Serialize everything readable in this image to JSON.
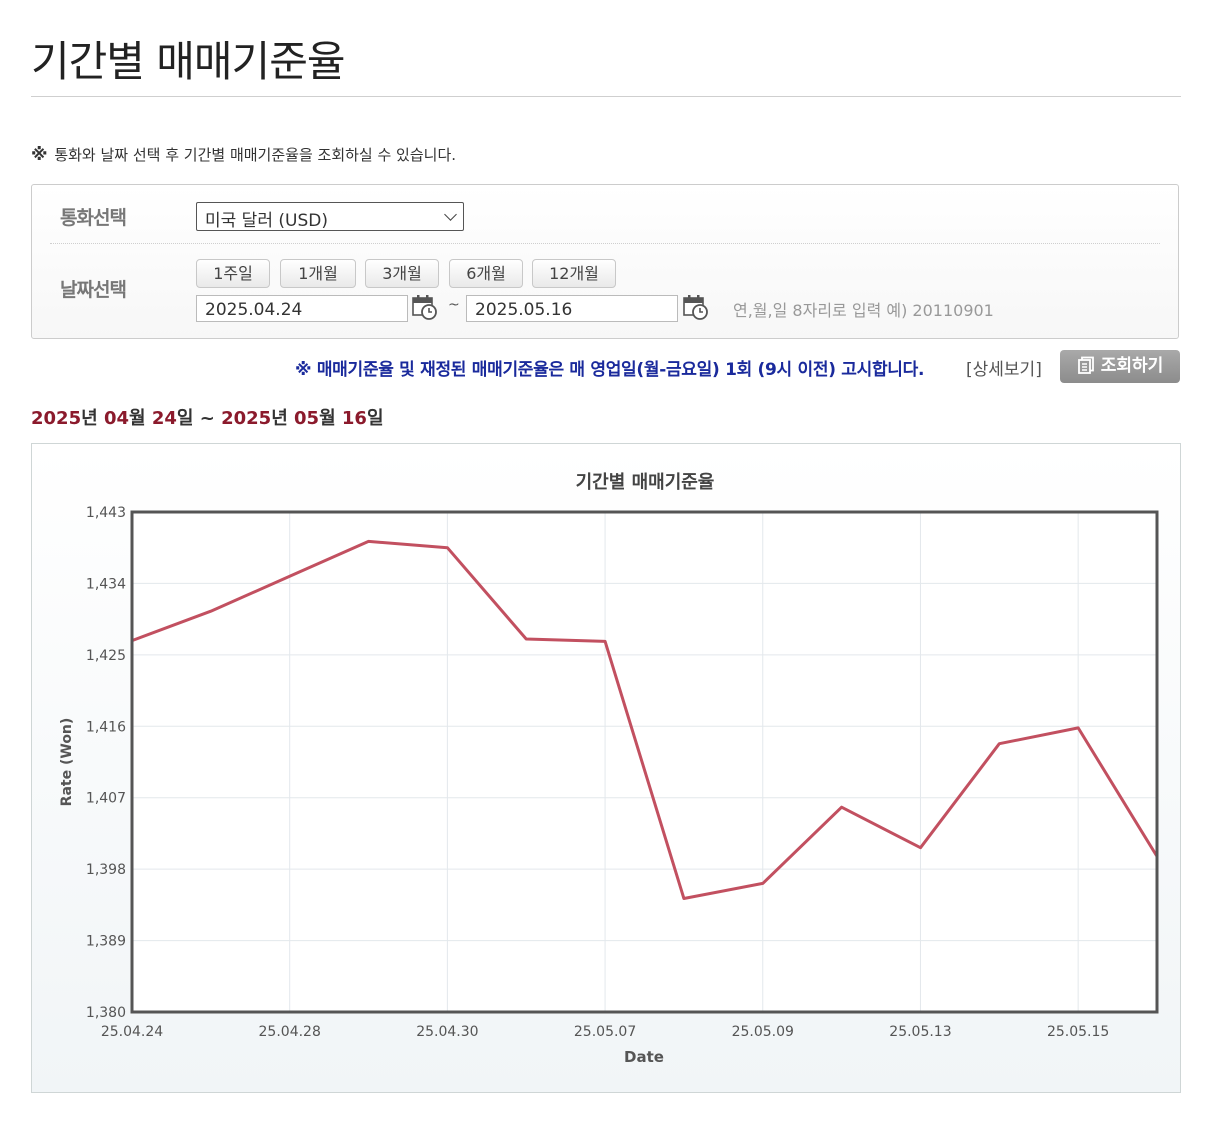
{
  "page": {
    "title": "기간별 매매기준율",
    "notice_mark": "※",
    "notice": "통화와 날짜 선택 후 기간별 매매기준율을 조회하실 수 있습니다."
  },
  "form": {
    "currency_label": "통화선택",
    "currency_value": "미국 달러 (USD)",
    "date_label": "날짜선택",
    "period_buttons": [
      "1주일",
      "1개월",
      "3개월",
      "6개월",
      "12개월"
    ],
    "start_date": "2025.04.24",
    "tilde": "~",
    "end_date": "2025.05.16",
    "hint": "연,월,일 8자리로 입력 예) 20110901"
  },
  "info": {
    "text": "※ 매매기준율 및 재정된 매매기준율은 매 영업일(월-금요일) 1회 (9시 이전) 고시합니다.",
    "detail_link": "[상세보기]",
    "query_button": "조회하기"
  },
  "range": {
    "y1": "2025",
    "u_year1": "년 ",
    "m1": "04",
    "u_month1": "월 ",
    "d1": "24",
    "u_day1": "일",
    "sep": " ~ ",
    "y2": "2025",
    "u_year2": "년 ",
    "m2": "05",
    "u_month2": "월 ",
    "d2": "16",
    "u_day2": "일"
  },
  "chart_data": {
    "type": "line",
    "title": "기간별 매매기준율",
    "xlabel": "Date",
    "ylabel": "Rate (Won)",
    "ylim": [
      1380,
      1443
    ],
    "yticks": [
      "1,380",
      "1,389",
      "1,398",
      "1,407",
      "1,416",
      "1,425",
      "1,434",
      "1,443"
    ],
    "xticks": [
      "25.04.24",
      "25.04.28",
      "25.04.30",
      "25.05.07",
      "25.05.09",
      "25.05.13",
      "25.05.15"
    ],
    "grid": true,
    "line_color": "#c25060",
    "points": [
      {
        "date": "25.04.24",
        "value": 1426.8
      },
      {
        "date": "25.04.25",
        "value": 1430.5
      },
      {
        "date": "25.04.28",
        "value": 1434.9
      },
      {
        "date": "25.04.29",
        "value": 1439.3
      },
      {
        "date": "25.04.30",
        "value": 1438.5
      },
      {
        "date": "25.05.02",
        "value": 1427.0
      },
      {
        "date": "25.05.07",
        "value": 1426.7
      },
      {
        "date": "25.05.08",
        "value": 1394.3
      },
      {
        "date": "25.05.09",
        "value": 1396.2
      },
      {
        "date": "25.05.12",
        "value": 1405.8
      },
      {
        "date": "25.05.13",
        "value": 1400.7
      },
      {
        "date": "25.05.14",
        "value": 1413.8
      },
      {
        "date": "25.05.15",
        "value": 1415.8
      },
      {
        "date": "25.05.16",
        "value": 1399.6
      }
    ]
  }
}
